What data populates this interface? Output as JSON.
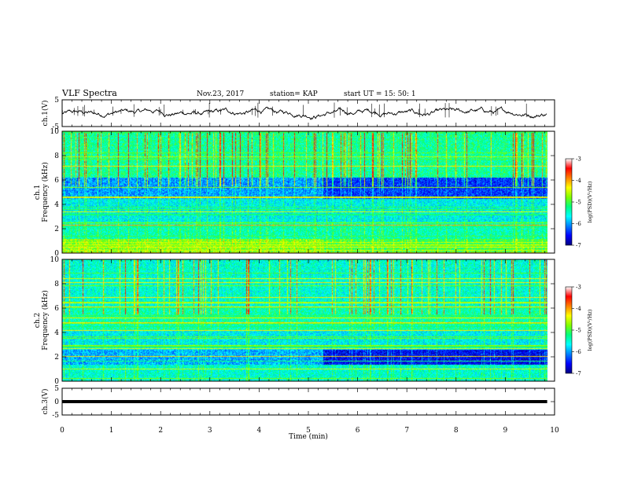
{
  "header": {
    "title": "VLF Spectra",
    "date": "Nov.23, 2017",
    "station": "station= KAP",
    "start_ut": "start  UT =   15: 50: 1"
  },
  "chart_data": [
    {
      "type": "line",
      "panel": "ch1-waveform",
      "ylabel": "ch.1(V)",
      "ylim": [
        -5,
        5
      ],
      "yticks": [
        "5",
        "-5"
      ],
      "xlim": [
        0,
        10
      ],
      "baseline": 0.2,
      "amplitude": 1.2
    },
    {
      "type": "heatmap",
      "panel": "ch1-spectrogram",
      "ylabel": "ch.1\nFrequency  (kHz)",
      "ylim": [
        0,
        10
      ],
      "yticks": [
        "0",
        "2",
        "4",
        "6",
        "8",
        "10"
      ],
      "xlim": [
        0,
        10
      ],
      "colorbar": {
        "label": "log(PSD)(V²/Hz)",
        "range": [
          -7,
          -3
        ],
        "ticks": [
          "-3",
          "-4",
          "-5",
          "-6",
          "-7"
        ]
      }
    },
    {
      "type": "heatmap",
      "panel": "ch2-spectrogram",
      "ylabel": "ch.2\nFrequency  (kHz)",
      "ylim": [
        0,
        10
      ],
      "yticks": [
        "0",
        "2",
        "4",
        "6",
        "8",
        "10"
      ],
      "xlim": [
        0,
        10
      ],
      "colorbar": {
        "label": "log(PSD)(V²/Hz)",
        "range": [
          -7,
          -3
        ],
        "ticks": [
          "-3",
          "-4",
          "-5",
          "-6",
          "-7"
        ]
      }
    },
    {
      "type": "line",
      "panel": "ch3-waveform",
      "ylabel": "ch.3(V)",
      "ylim": [
        -5,
        5
      ],
      "yticks": [
        "5",
        "0",
        "-5"
      ],
      "xlim": [
        0,
        10
      ],
      "baseline": 0.0,
      "amplitude": 0.0
    }
  ],
  "x_axis": {
    "label": "Time  (min)",
    "ticks": [
      "0",
      "1",
      "2",
      "3",
      "4",
      "5",
      "6",
      "7",
      "8",
      "9",
      "10"
    ],
    "data_end": 9.85,
    "transition": 5.3
  },
  "colors": {
    "colormap": [
      "#000080",
      "#0000ff",
      "#0080ff",
      "#00ffff",
      "#00ff80",
      "#80ff00",
      "#ffff00",
      "#ff8000",
      "#ff0000",
      "#ffffff"
    ]
  }
}
